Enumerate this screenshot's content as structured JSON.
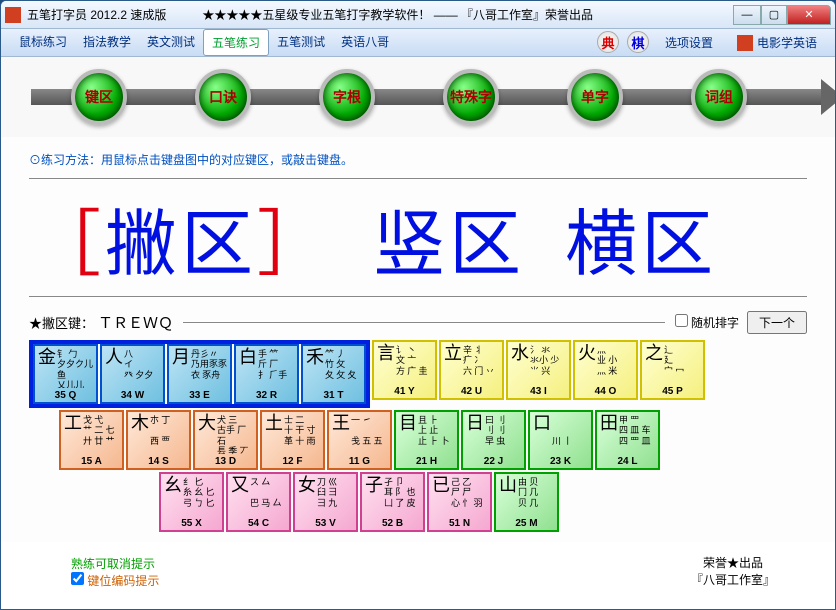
{
  "title": "五笔打字员 2012.2 速成版　　　★★★★★五星级专业五笔打字教学软件！ —— 『八哥工作室』荣誉出品",
  "menu": [
    "鼠标练习",
    "指法教学",
    "英文测试",
    "五笔练习",
    "五笔测试",
    "英语八哥"
  ],
  "menu_active_index": 3,
  "menu_right": {
    "dian": "典",
    "qi": "棋",
    "opt": "选项设置",
    "movie": "电影学英语"
  },
  "orbs": [
    "键区",
    "口诀",
    "字根",
    "特殊字",
    "单字",
    "词组"
  ],
  "instruction": "⊙练习方法：用鼠标点击键盘图中的对应键区，或敲击键盘。",
  "zones": {
    "z1_open": "［",
    "z1": "撇区",
    "z1_close": "］",
    "z2": "竖区",
    "z3": "横区"
  },
  "subhead": {
    "label": "★撇区键：",
    "keys": "ＴＲＥＷＱ",
    "random": "随机排字",
    "next": "下一个"
  },
  "row1": [
    {
      "big": "金",
      "code": "35 Q",
      "roots": "钅 勹\n夕夕ク儿鱼\n乂儿儿 勺",
      "cls": "blue"
    },
    {
      "big": "人",
      "code": "34 W",
      "roots": "八\nイ\n癶 夕夕",
      "cls": "blue"
    },
    {
      "big": "月",
      "code": "33 E",
      "roots": "丹彡〃\n乃用豕豕\n衣 豕舟",
      "cls": "blue"
    },
    {
      "big": "白",
      "code": "32 R",
      "roots": "手 ⺮\n斤 厂\n扌 ⺁手",
      "cls": "blue"
    },
    {
      "big": "禾",
      "code": "31 T",
      "roots": "⺮ 丿\n竹 攵\n夂 攵 夂",
      "cls": "blue"
    },
    {
      "big": "言",
      "code": "41 Y",
      "roots": "讠 丶\n文 亠\n方 广 圭",
      "cls": "yellow"
    },
    {
      "big": "立",
      "code": "42 U",
      "roots": "辛 丬\n疒 冫\n六 门 丷",
      "cls": "yellow"
    },
    {
      "big": "水",
      "code": "43 I",
      "roots": "氵 氺\n氺小 少\n⺌ 兴",
      "cls": "yellow"
    },
    {
      "big": "火",
      "code": "44 O",
      "roots": "灬\n业 小\n灬 米",
      "cls": "yellow"
    },
    {
      "big": "之",
      "code": "45 P",
      "roots": "辶\n廴\n宀 冖",
      "cls": "yellow"
    }
  ],
  "row2": [
    {
      "big": "工",
      "code": "15 A",
      "roots": "戈 弋\n艹 二 七\n廾 廿 艹",
      "cls": "orange"
    },
    {
      "big": "木",
      "code": "14 S",
      "roots": "朩 丁\n\n西 覀",
      "cls": "orange"
    },
    {
      "big": "大",
      "code": "13 D",
      "roots": "犬 三\n古手 厂 石\n镸 季 丆",
      "cls": "orange"
    },
    {
      "big": "土",
      "code": "12 F",
      "roots": "士 二\n十 干 寸\n革 十 雨",
      "cls": "orange"
    },
    {
      "big": "王",
      "code": "11 G",
      "roots": "一 ㇀\n\n戋 五 五",
      "cls": "orange"
    },
    {
      "big": "目",
      "code": "21 H",
      "roots": "且 ⺊\n上 止\n止 ⺊ 卜",
      "cls": "green"
    },
    {
      "big": "日",
      "code": "22 J",
      "roots": "曰 刂\n刂 刂\n早 虫",
      "cls": "green"
    },
    {
      "big": "口",
      "code": "23 K",
      "roots": "\n\n川 ⼁",
      "cls": "green"
    },
    {
      "big": "田",
      "code": "24 L",
      "roots": "甲 罒\n四 皿 车\n四 罒 皿",
      "cls": "green"
    }
  ],
  "row3": [
    {
      "big": "幺",
      "code": "55 X",
      "roots": "纟 匕\n糸 幺 匕\n弓 ㄅ 匕",
      "cls": "pink"
    },
    {
      "big": "又",
      "code": "54 C",
      "roots": "ス 厶\n\n巴 马 厶",
      "cls": "pink"
    },
    {
      "big": "女",
      "code": "53 V",
      "roots": "刀 巛\n臼 彐\n⺕ 九",
      "cls": "pink"
    },
    {
      "big": "子",
      "code": "52 B",
      "roots": "孑 卩\n耳 阝 也\n凵 了 皮",
      "cls": "pink"
    },
    {
      "big": "已",
      "code": "51 N",
      "roots": "己 乙\n尸 尸\n心 忄 羽",
      "cls": "pink"
    },
    {
      "big": "山",
      "code": "25 M",
      "roots": "由 贝\n冂 几\n贝 几",
      "cls": "green"
    }
  ],
  "footer": {
    "g": "熟练可取消提示",
    "chk": "键位编码提示",
    "credit1": "荣誉★出品",
    "credit2": "『八哥工作室』"
  }
}
